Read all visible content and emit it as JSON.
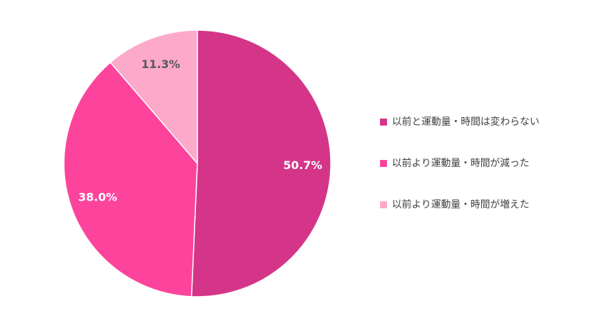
{
  "chart_data": {
    "type": "pie",
    "categories": [
      "以前と運動量・時間は変わらない",
      "以前より運動量・時間が減った",
      "以前より運動量・時間が増えた"
    ],
    "values": [
      50.7,
      38.0,
      11.3
    ],
    "value_labels": [
      "50.7%",
      "38.0%",
      "11.3%"
    ],
    "colors": [
      "#d43589",
      "#fd449c",
      "#fda9c9"
    ],
    "label_colors": [
      "#ffffff",
      "#ffffff",
      "#595959"
    ],
    "legend": "right"
  }
}
